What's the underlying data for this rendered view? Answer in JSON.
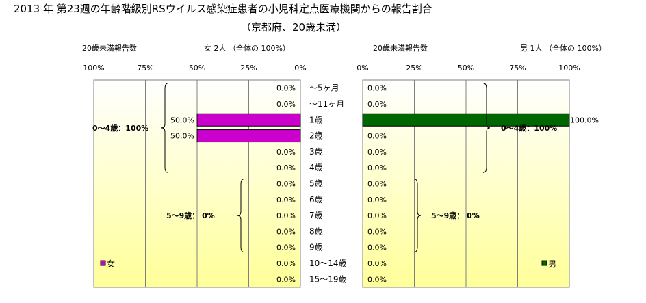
{
  "title": "2013 年 第23週の年齢階級別RSウイルス感染症患者の小児科定点医療機関からの報告割合",
  "subtitle": "（京都府、20歳未満）",
  "chart_data": {
    "type": "bar",
    "orientation": "horizontal",
    "categories": [
      "～5ヶ月",
      "～11ヶ月",
      "1歳",
      "2歳",
      "3歳",
      "4歳",
      "5歳",
      "6歳",
      "7歳",
      "8歳",
      "9歳",
      "10～14歳",
      "15～19歳"
    ],
    "xlim": [
      0,
      100
    ],
    "ticks": [
      "0%",
      "25%",
      "50%",
      "75%",
      "100%"
    ],
    "panels": [
      {
        "side": "left",
        "reversed": true,
        "header_left": "20歳未満報告数",
        "header_right": "女  2人  （全体の   100%）",
        "series": [
          {
            "name": "女",
            "color": "#cc00cc",
            "values": [
              0,
              0,
              50,
              50,
              0,
              0,
              0,
              0,
              0,
              0,
              0,
              0,
              0
            ],
            "labels": [
              "0.0%",
              "0.0%",
              "50.0%",
              "50.0%",
              "0.0%",
              "0.0%",
              "0.0%",
              "0.0%",
              "0.0%",
              "0.0%",
              "0.0%",
              "0.0%",
              "0.0%"
            ]
          }
        ],
        "groups": [
          {
            "label": "0～4歳：100%"
          },
          {
            "label": "5～9歳：  0%"
          }
        ],
        "legend": "bottom-left"
      },
      {
        "side": "right",
        "reversed": false,
        "header_left": "20歳未満報告数",
        "header_right": "男  1人  （全体の   100%）",
        "series": [
          {
            "name": "男",
            "color": "#006600",
            "values": [
              0,
              0,
              100,
              0,
              0,
              0,
              0,
              0,
              0,
              0,
              0,
              0,
              0
            ],
            "labels": [
              "0.0%",
              "0.0%",
              "100.0%",
              "0.0%",
              "0.0%",
              "0.0%",
              "0.0%",
              "0.0%",
              "0.0%",
              "0.0%",
              "0.0%",
              "0.0%",
              "0.0%"
            ]
          }
        ],
        "groups": [
          {
            "label": "0～4歳：100%"
          },
          {
            "label": "5～9歳：  0%"
          }
        ],
        "legend": "bottom-right"
      }
    ],
    "grid": true
  }
}
